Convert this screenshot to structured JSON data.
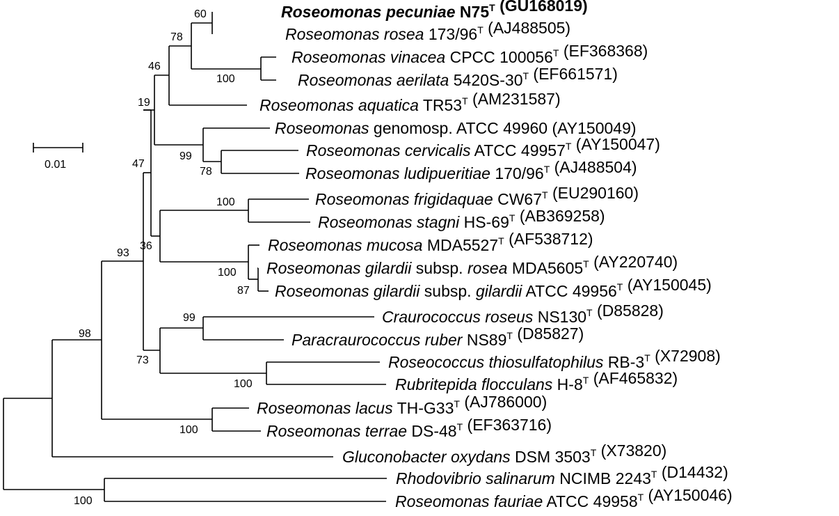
{
  "tree": {
    "taxa": [
      {
        "id": "t1",
        "parts": [
          {
            "t": "Roseomonas pecuniae",
            "i": true
          },
          {
            "t": " N75"
          },
          {
            "t": "T",
            "sup": true
          },
          {
            "t": " (GU168019)"
          }
        ],
        "bold": true
      },
      {
        "id": "t2",
        "parts": [
          {
            "t": "Roseomonas rosea",
            "i": true
          },
          {
            "t": " 173/96"
          },
          {
            "t": "T",
            "sup": true
          },
          {
            "t": " (AJ488505)"
          }
        ]
      },
      {
        "id": "t3",
        "parts": [
          {
            "t": "Roseomonas vinacea",
            "i": true
          },
          {
            "t": " CPCC 100056"
          },
          {
            "t": "T",
            "sup": true
          },
          {
            "t": " (EF368368)"
          }
        ]
      },
      {
        "id": "t4",
        "parts": [
          {
            "t": "Roseomonas aerilata",
            "i": true
          },
          {
            "t": " 5420S-30"
          },
          {
            "t": "T",
            "sup": true
          },
          {
            "t": " (EF661571)"
          }
        ]
      },
      {
        "id": "t5",
        "parts": [
          {
            "t": "Roseomonas aquatica",
            "i": true
          },
          {
            "t": " TR53"
          },
          {
            "t": "T",
            "sup": true
          },
          {
            "t": " (AM231587)"
          }
        ]
      },
      {
        "id": "t6",
        "parts": [
          {
            "t": "Roseomonas",
            "i": true
          },
          {
            "t": " genomosp. ATCC 49960 (AY150049)"
          }
        ]
      },
      {
        "id": "t7",
        "parts": [
          {
            "t": "Roseomonas cervicalis",
            "i": true
          },
          {
            "t": " ATCC 49957"
          },
          {
            "t": "T",
            "sup": true
          },
          {
            "t": " (AY150047)"
          }
        ]
      },
      {
        "id": "t8",
        "parts": [
          {
            "t": "Roseomonas ludipueritiae",
            "i": true
          },
          {
            "t": " 170/96"
          },
          {
            "t": "T",
            "sup": true
          },
          {
            "t": " (AJ488504)"
          }
        ]
      },
      {
        "id": "t9",
        "parts": [
          {
            "t": "Roseomonas frigidaquae",
            "i": true
          },
          {
            "t": " CW67"
          },
          {
            "t": "T",
            "sup": true
          },
          {
            "t": " (EU290160)"
          }
        ]
      },
      {
        "id": "t10",
        "parts": [
          {
            "t": "Roseomonas stagni",
            "i": true
          },
          {
            "t": " HS-69"
          },
          {
            "t": "T",
            "sup": true
          },
          {
            "t": " (AB369258)"
          }
        ]
      },
      {
        "id": "t11",
        "parts": [
          {
            "t": "Roseomonas mucosa",
            "i": true
          },
          {
            "t": " MDA5527"
          },
          {
            "t": "T",
            "sup": true
          },
          {
            "t": " (AF538712)"
          }
        ]
      },
      {
        "id": "t12",
        "parts": [
          {
            "t": "Roseomonas gilardii",
            "i": true
          },
          {
            "t": " subsp. "
          },
          {
            "t": "rosea",
            "i": true
          },
          {
            "t": " MDA5605"
          },
          {
            "t": "T",
            "sup": true
          },
          {
            "t": " (AY220740)"
          }
        ]
      },
      {
        "id": "t13",
        "parts": [
          {
            "t": "Roseomonas gilardii",
            "i": true
          },
          {
            "t": " subsp. "
          },
          {
            "t": "gilardii",
            "i": true
          },
          {
            "t": " ATCC 49956"
          },
          {
            "t": "T",
            "sup": true
          },
          {
            "t": " (AY150045)"
          }
        ]
      },
      {
        "id": "t14",
        "parts": [
          {
            "t": "Craurococcus roseus",
            "i": true
          },
          {
            "t": " NS130"
          },
          {
            "t": "T",
            "sup": true
          },
          {
            "t": " (D85828)"
          }
        ]
      },
      {
        "id": "t15",
        "parts": [
          {
            "t": "Paracraurococcus ruber",
            "i": true
          },
          {
            "t": " NS89"
          },
          {
            "t": "T",
            "sup": true
          },
          {
            "t": " (D85827)"
          }
        ]
      },
      {
        "id": "t16",
        "parts": [
          {
            "t": "Roseococcus thiosulfatophilus",
            "i": true
          },
          {
            "t": " RB-3"
          },
          {
            "t": "T",
            "sup": true
          },
          {
            "t": " (X72908)"
          }
        ]
      },
      {
        "id": "t17",
        "parts": [
          {
            "t": "Rubritepida flocculans",
            "i": true
          },
          {
            "t": " H-8"
          },
          {
            "t": "T",
            "sup": true
          },
          {
            "t": " (AF465832)"
          }
        ]
      },
      {
        "id": "t18",
        "parts": [
          {
            "t": "Roseomonas lacus",
            "i": true
          },
          {
            "t": " TH-G33"
          },
          {
            "t": "T",
            "sup": true
          },
          {
            "t": " (AJ786000)"
          }
        ]
      },
      {
        "id": "t19",
        "parts": [
          {
            "t": "Roseomonas terrae",
            "i": true
          },
          {
            "t": " DS-48"
          },
          {
            "t": "T",
            "sup": true
          },
          {
            "t": " (EF363716)"
          }
        ]
      },
      {
        "id": "t20",
        "parts": [
          {
            "t": "Gluconobacter oxydans",
            "i": true
          },
          {
            "t": " DSM 3503"
          },
          {
            "t": "T",
            "sup": true
          },
          {
            "t": " (X73820)"
          }
        ]
      },
      {
        "id": "t21",
        "parts": [
          {
            "t": "Rhodovibrio salinarum",
            "i": true
          },
          {
            "t": " NCIMB 2243"
          },
          {
            "t": "T",
            "sup": true
          },
          {
            "t": " (D14432)"
          }
        ]
      },
      {
        "id": "t22",
        "parts": [
          {
            "t": "Roseomonas fauriae",
            "i": true
          },
          {
            "t": " ATCC 49958"
          },
          {
            "t": "T",
            "sup": true
          },
          {
            "t": " (AY150046)"
          }
        ]
      }
    ],
    "bootstrap": {
      "b1": "60",
      "b2": "78",
      "b3": "100",
      "b4": "46",
      "b5": "19",
      "b6": "99",
      "b7": "78",
      "b8": "47",
      "b9": "100",
      "b10": "36",
      "b11": "100",
      "b12": "87",
      "b13": "93",
      "b14": "99",
      "b15": "73",
      "b16": "100",
      "b17": "98",
      "b18": "100",
      "b19": "100"
    },
    "scale_bar": {
      "label": "0.01",
      "value": 0.01
    }
  }
}
